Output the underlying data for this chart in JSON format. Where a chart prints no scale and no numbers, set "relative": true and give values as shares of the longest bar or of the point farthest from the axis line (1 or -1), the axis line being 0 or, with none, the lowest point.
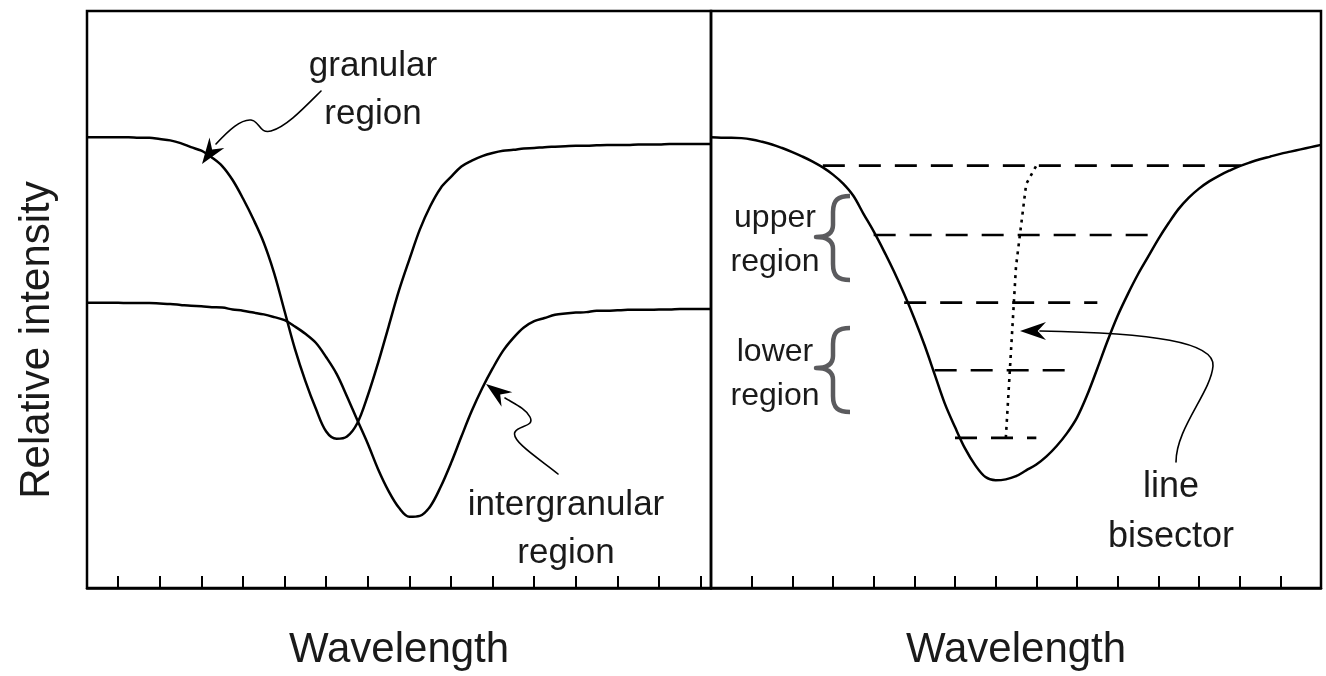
{
  "chart_data": [
    {
      "type": "line",
      "xlabel": "Wavelength",
      "ylabel": "Relative intensity",
      "relative": true,
      "categories": [
        null,
        null,
        null,
        null,
        null,
        null,
        null,
        null,
        null,
        null,
        null,
        null,
        null,
        null,
        null,
        null,
        null,
        null,
        null,
        null,
        null,
        null,
        null,
        null,
        null,
        null,
        null,
        null,
        null,
        null,
        null,
        null,
        null,
        null,
        null,
        null,
        null,
        null,
        null,
        null,
        null,
        null,
        null,
        null,
        null,
        null,
        null,
        null,
        null,
        null,
        null,
        null,
        null,
        null,
        null,
        null,
        null,
        null,
        null,
        null,
        null
      ],
      "series": [
        {
          "color": "#000000",
          "values": [
            1,
            1,
            1,
            1,
            1,
            0.999,
            0.999,
            0.996,
            0.993,
            0.987,
            0.978,
            0.97,
            0.955,
            0.936,
            0.905,
            0.864,
            0.818,
            0.766,
            0.698,
            0.614,
            0.53,
            0.459,
            0.398,
            0.347,
            0.331,
            0.336,
            0.366,
            0.427,
            0.5,
            0.58,
            0.66,
            0.729,
            0.795,
            0.847,
            0.887,
            0.912,
            0.935,
            0.948,
            0.958,
            0.965,
            0.97,
            0.972,
            0.975,
            0.976,
            0.978,
            0.979,
            0.98,
            0.981,
            0.981,
            0.982,
            0.983,
            0.983,
            0.983,
            0.984,
            0.984,
            0.984,
            0.985,
            0.985,
            0.985,
            0.985,
            0.985
          ]
        },
        {
          "color": "#000000",
          "values": [
            0.633,
            0.633,
            0.633,
            0.633,
            0.632,
            0.632,
            0.632,
            0.631,
            0.63,
            0.628,
            0.626,
            0.625,
            0.623,
            0.622,
            0.618,
            0.615,
            0.611,
            0.607,
            0.601,
            0.594,
            0.58,
            0.564,
            0.544,
            0.512,
            0.475,
            0.425,
            0.372,
            0.32,
            0.263,
            0.215,
            0.178,
            0.158,
            0.16,
            0.181,
            0.224,
            0.277,
            0.336,
            0.393,
            0.443,
            0.487,
            0.526,
            0.555,
            0.578,
            0.592,
            0.599,
            0.606,
            0.609,
            0.611,
            0.612,
            0.615,
            0.615,
            0.616,
            0.617,
            0.617,
            0.617,
            0.618,
            0.618,
            0.619,
            0.619,
            0.619,
            0.619
          ]
        }
      ],
      "annotations": [
        "granular region",
        "intergranular region"
      ]
    },
    {
      "type": "line",
      "xlabel": "Wavelength",
      "relative": true,
      "categories": [
        null,
        null,
        null,
        null,
        null,
        null,
        null,
        null,
        null,
        null,
        null,
        null,
        null,
        null,
        null,
        null,
        null,
        null,
        null,
        null,
        null,
        null,
        null,
        null,
        null,
        null,
        null,
        null,
        null,
        null,
        null,
        null,
        null,
        null,
        null,
        null,
        null,
        null,
        null,
        null,
        null,
        null,
        null,
        null,
        null,
        null,
        null,
        null,
        null,
        null,
        null,
        null,
        null,
        null,
        null,
        null,
        null,
        null,
        null,
        null,
        null
      ],
      "series": [
        {
          "color": "#000000",
          "values": [
            1,
            0.999,
            0.999,
            0.998,
            0.995,
            0.99,
            0.984,
            0.976,
            0.967,
            0.957,
            0.946,
            0.933,
            0.917,
            0.897,
            0.87,
            0.83,
            0.791,
            0.748,
            0.702,
            0.652,
            0.598,
            0.539,
            0.474,
            0.409,
            0.357,
            0.309,
            0.272,
            0.246,
            0.239,
            0.241,
            0.248,
            0.261,
            0.274,
            0.292,
            0.315,
            0.343,
            0.378,
            0.428,
            0.487,
            0.548,
            0.604,
            0.652,
            0.696,
            0.735,
            0.774,
            0.809,
            0.841,
            0.866,
            0.886,
            0.902,
            0.915,
            0.926,
            0.936,
            0.944,
            0.951,
            0.957,
            0.963,
            0.968,
            0.973,
            0.978,
            0.983
          ]
        },
        {
          "color": "#000000",
          "line_style": "dashed",
          "values": [
            null,
            null,
            null,
            null,
            null,
            null,
            null,
            null,
            null,
            null,
            null,
            0.937,
            0.937,
            0.937,
            0.937,
            0.937,
            0.937,
            0.937,
            0.937,
            0.937,
            0.937,
            0.937,
            0.937,
            0.937,
            0.937,
            0.937,
            0.937,
            0.937,
            0.937,
            0.937,
            0.937,
            0.937,
            0.937,
            0.937,
            0.937,
            0.937,
            0.937,
            0.937,
            0.937,
            0.937,
            0.937,
            0.937,
            0.937,
            0.937,
            0.937,
            0.937,
            0.937,
            0.937,
            0.937,
            0.937,
            0.937,
            0.937,
            0.937,
            0.937,
            null,
            null,
            null,
            null,
            null,
            null,
            null
          ]
        },
        {
          "color": "#000000",
          "line_style": "dashed",
          "values": [
            null,
            null,
            null,
            null,
            null,
            null,
            null,
            null,
            null,
            null,
            null,
            null,
            null,
            null,
            null,
            null,
            0.783,
            0.783,
            0.783,
            0.783,
            0.783,
            0.783,
            0.783,
            0.783,
            0.783,
            0.783,
            0.783,
            0.783,
            0.783,
            0.783,
            0.783,
            0.783,
            0.783,
            0.783,
            0.783,
            0.783,
            0.783,
            0.783,
            0.783,
            0.783,
            0.783,
            0.783,
            0.783,
            0.783,
            0.783,
            null,
            null,
            null,
            null,
            null,
            null,
            null,
            null,
            null,
            null,
            null,
            null,
            null,
            null,
            null,
            null
          ]
        },
        {
          "color": "#000000",
          "line_style": "dashed",
          "values": [
            null,
            null,
            null,
            null,
            null,
            null,
            null,
            null,
            null,
            null,
            null,
            null,
            null,
            null,
            null,
            null,
            null,
            null,
            null,
            0.633,
            0.633,
            0.633,
            0.633,
            0.633,
            0.633,
            0.633,
            0.633,
            0.633,
            0.633,
            0.633,
            0.633,
            0.633,
            0.633,
            0.633,
            0.633,
            0.633,
            0.633,
            0.633,
            0.633,
            null,
            null,
            null,
            null,
            null,
            null,
            null,
            null,
            null,
            null,
            null,
            null,
            null,
            null,
            null,
            null,
            null,
            null,
            null,
            null,
            null,
            null
          ]
        },
        {
          "color": "#000000",
          "line_style": "dashed",
          "values": [
            null,
            null,
            null,
            null,
            null,
            null,
            null,
            null,
            null,
            null,
            null,
            null,
            null,
            null,
            null,
            null,
            null,
            null,
            null,
            null,
            null,
            null,
            0.483,
            0.483,
            0.483,
            0.483,
            0.483,
            0.483,
            0.483,
            0.483,
            0.483,
            0.483,
            0.483,
            0.483,
            0.483,
            0.483,
            null,
            null,
            null,
            null,
            null,
            null,
            null,
            null,
            null,
            null,
            null,
            null,
            null,
            null,
            null,
            null,
            null,
            null,
            null,
            null,
            null,
            null,
            null,
            null,
            null
          ]
        },
        {
          "color": "#000000",
          "line_style": "dashed",
          "values": [
            null,
            null,
            null,
            null,
            null,
            null,
            null,
            null,
            null,
            null,
            null,
            null,
            null,
            null,
            null,
            null,
            null,
            null,
            null,
            null,
            null,
            null,
            null,
            null,
            0.333,
            0.333,
            0.333,
            0.333,
            0.333,
            0.333,
            0.333,
            0.333,
            0.333,
            null,
            null,
            null,
            null,
            null,
            null,
            null,
            null,
            null,
            null,
            null,
            null,
            null,
            null,
            null,
            null,
            null,
            null,
            null,
            null,
            null,
            null,
            null,
            null,
            null,
            null,
            null,
            null
          ]
        },
        {
          "color": "#000000",
          "line_style": "dotted",
          "values": [
            null,
            null,
            null,
            null,
            null,
            null,
            null,
            null,
            null,
            null,
            null,
            null,
            null,
            null,
            null,
            null,
            null,
            null,
            null,
            null,
            null,
            null,
            null,
            null,
            null,
            null,
            null,
            null,
            null,
            0.333,
            0.713,
            0.896,
            0.937,
            null,
            null,
            null,
            null,
            null,
            null,
            null,
            null,
            null,
            null,
            null,
            null,
            null,
            null,
            null,
            null,
            null,
            null,
            null,
            null,
            null,
            null,
            null,
            null,
            null,
            null,
            null,
            null
          ]
        }
      ],
      "annotations": [
        "upper region",
        "lower region",
        "line bisector"
      ]
    }
  ]
}
